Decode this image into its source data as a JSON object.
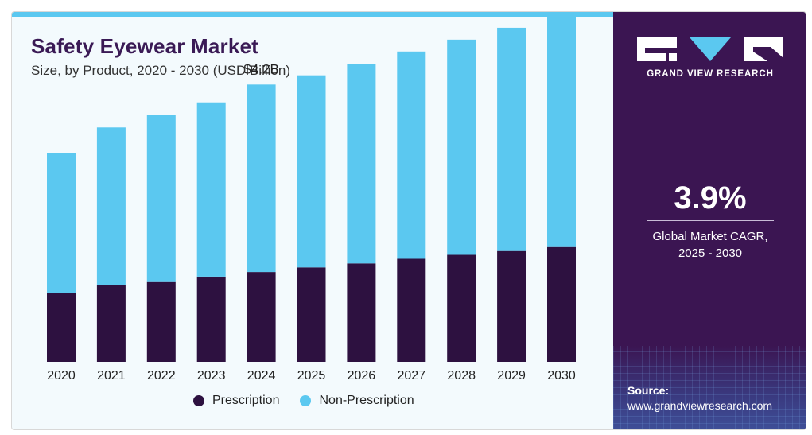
{
  "title": "Safety Eyewear Market",
  "subtitle": "Size, by Product, 2020 - 2030 (USD Billion)",
  "colors": {
    "prescription": "#2d1140",
    "non_prescription": "#5bc8f0",
    "panel": "#3b1552",
    "accent": "#5bc8f0"
  },
  "chart_data": {
    "type": "bar",
    "stacked": true,
    "categories": [
      "2020",
      "2021",
      "2022",
      "2023",
      "2024",
      "2025",
      "2026",
      "2027",
      "2028",
      "2029",
      "2030"
    ],
    "series": [
      {
        "name": "Prescription",
        "values": [
          1.04,
          1.16,
          1.22,
          1.29,
          1.36,
          1.43,
          1.49,
          1.56,
          1.62,
          1.69,
          1.75
        ]
      },
      {
        "name": "Non-Prescription",
        "values": [
          2.12,
          2.39,
          2.52,
          2.64,
          2.84,
          2.91,
          3.02,
          3.14,
          3.26,
          3.37,
          3.51
        ]
      }
    ],
    "annotations": [
      {
        "category": "2024",
        "text": "$4.2B"
      }
    ],
    "ylim": [
      0,
      5.3
    ],
    "grid": false,
    "legend_position": "bottom"
  },
  "legend": {
    "prescription": "Prescription",
    "non_prescription": "Non-Prescription"
  },
  "side_panel": {
    "logo_text": "GRAND VIEW RESEARCH",
    "logo_icon": "grand-view-research-logo",
    "cagr_value": "3.9%",
    "cagr_label_line1": "Global Market CAGR,",
    "cagr_label_line2": "2025 - 2030",
    "source_title": "Source:",
    "source_url": "www.grandviewresearch.com"
  }
}
